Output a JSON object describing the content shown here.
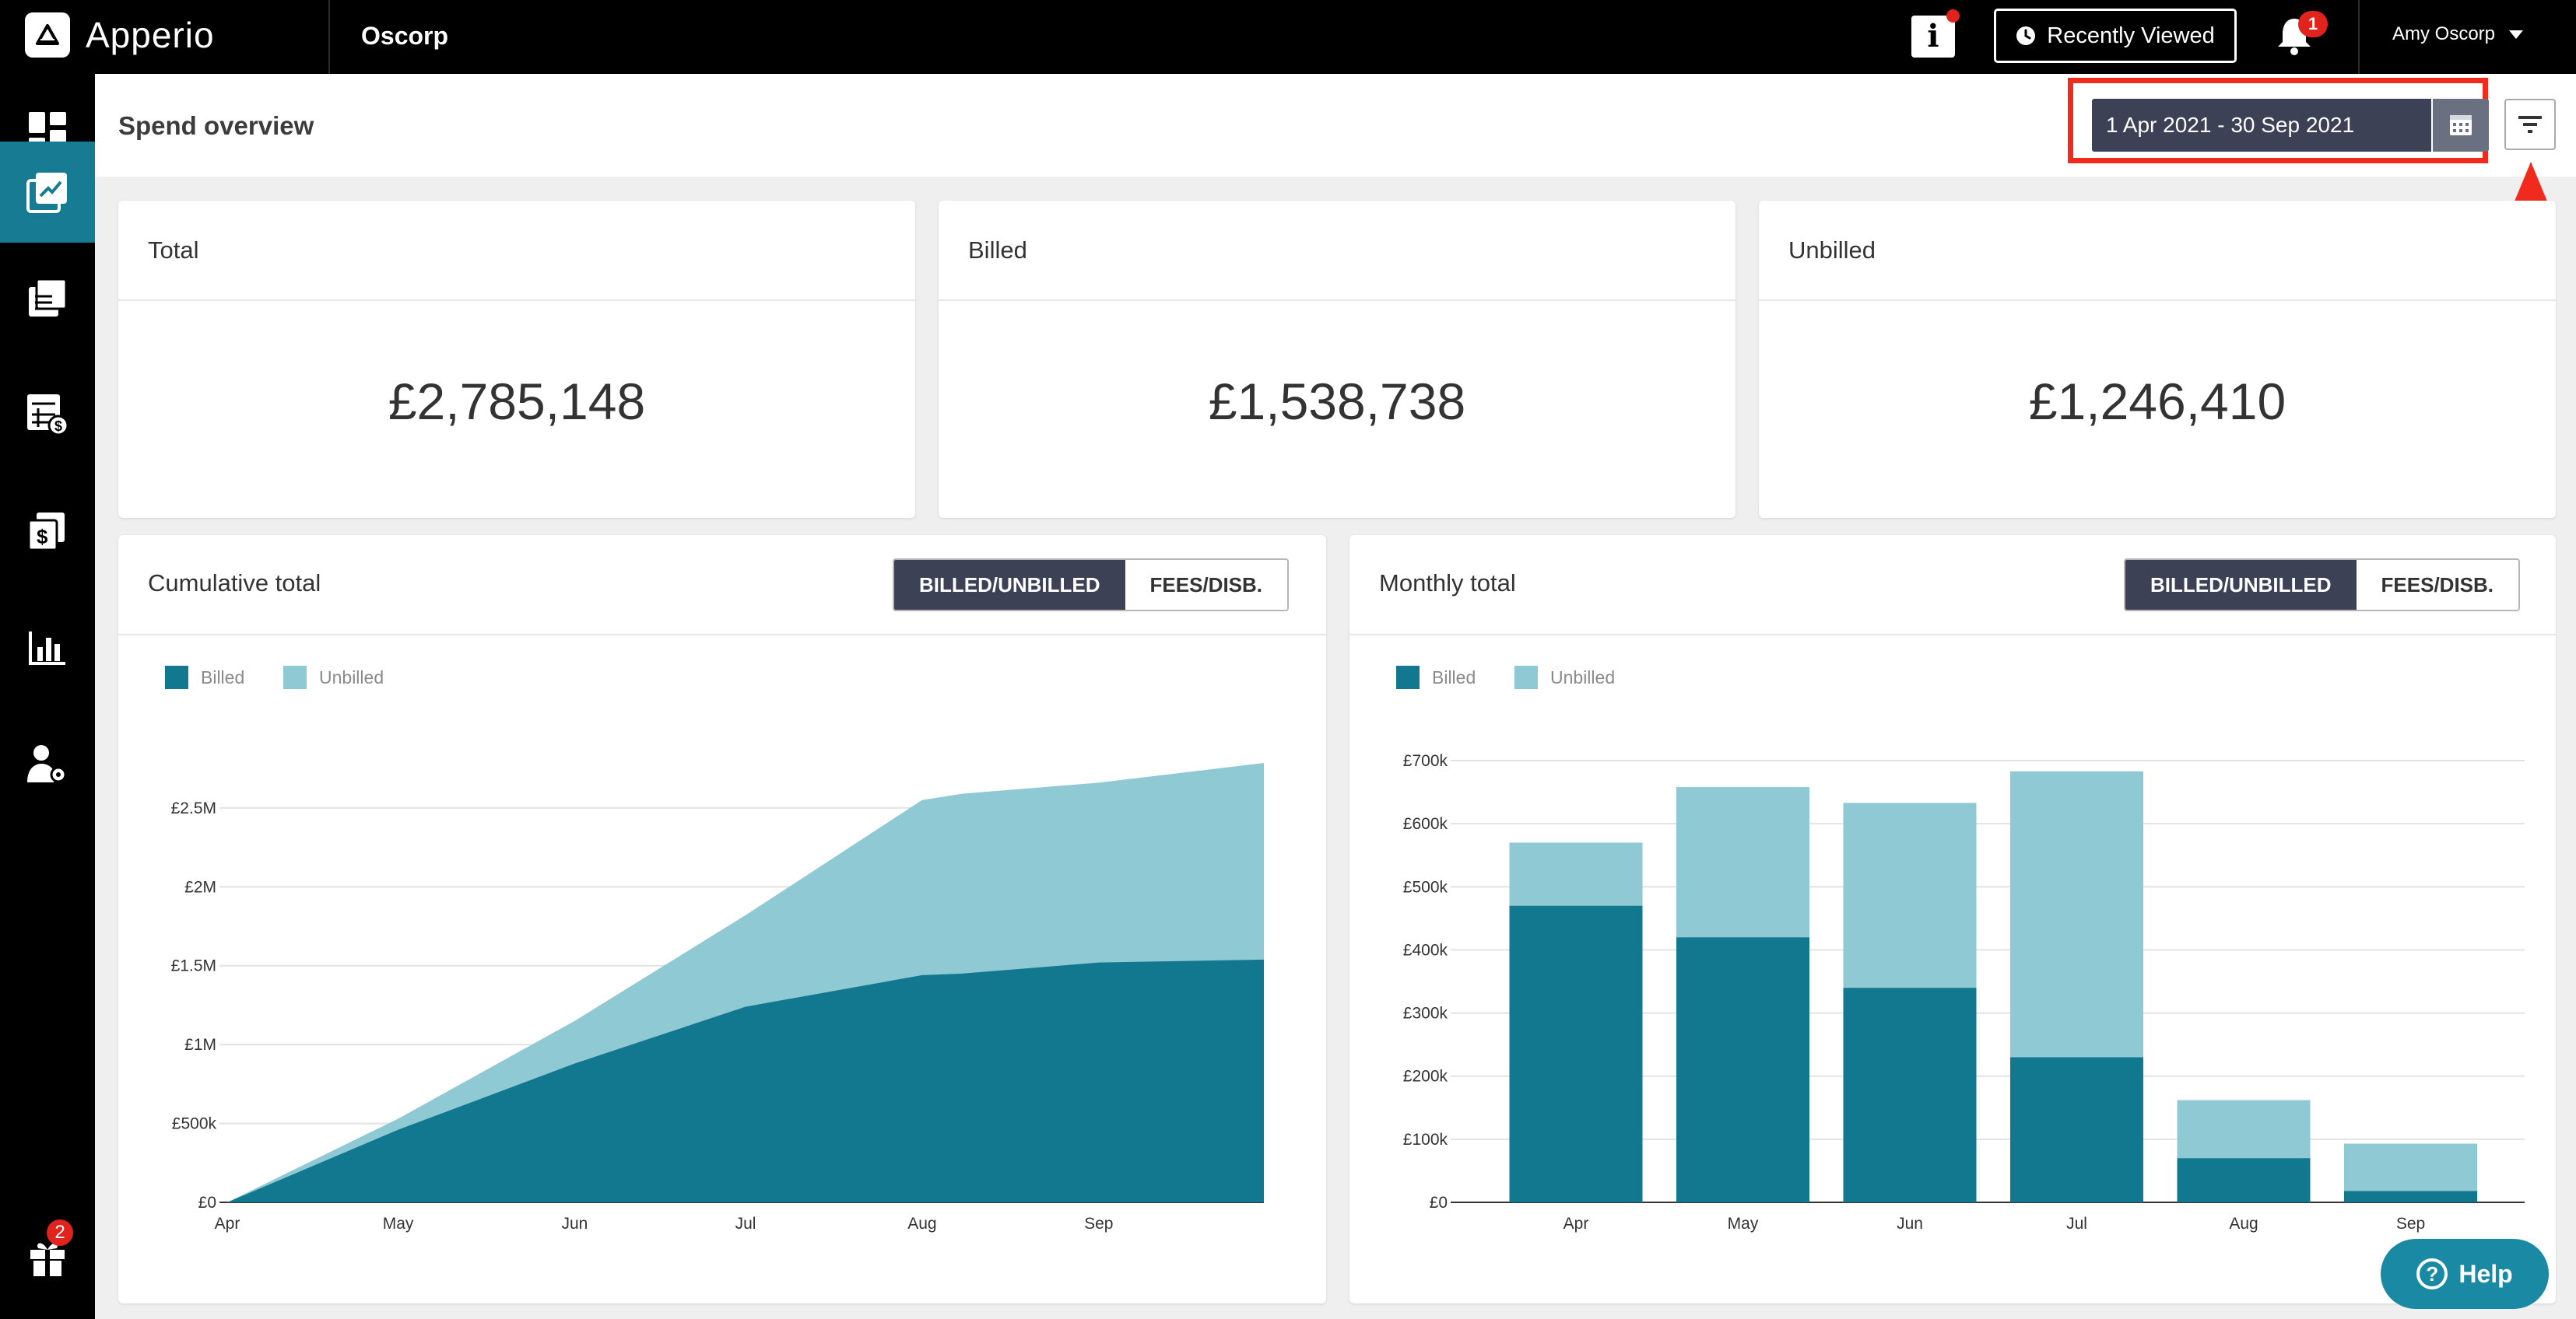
{
  "app": {
    "name": "Apperio",
    "client": "Oscorp"
  },
  "topbar": {
    "info_label": "i",
    "recently_viewed": "Recently Viewed",
    "notifications_count": "1",
    "user_name": "Amy Oscorp"
  },
  "sidebar": {
    "items": [
      {
        "icon": "dashboard-icon"
      },
      {
        "icon": "spend-trend-icon",
        "active": true
      },
      {
        "icon": "documents-icon"
      },
      {
        "icon": "budget-calculator-icon"
      },
      {
        "icon": "invoices-icon"
      },
      {
        "icon": "reports-bar-chart-icon"
      },
      {
        "icon": "user-settings-icon"
      }
    ],
    "gift_badge": "2"
  },
  "header": {
    "title": "Spend overview",
    "date_range": "1 Apr 2021 - 30 Sep 2021"
  },
  "stats": [
    {
      "label": "Total",
      "value": "£2,785,148"
    },
    {
      "label": "Billed",
      "value": "£1,538,738"
    },
    {
      "label": "Unbilled",
      "value": "£1,246,410"
    }
  ],
  "colors": {
    "billed": "#12788f",
    "unbilled": "#8ec9d4",
    "active_toggle": "#3c4156",
    "highlight": "#f02b1e"
  },
  "cumulative": {
    "title": "Cumulative total",
    "toggle": [
      "BILLED/UNBILLED",
      "FEES/DISB."
    ],
    "legend": [
      "Billed",
      "Unbilled"
    ],
    "y_ticks": [
      "£0",
      "£500k",
      "£1M",
      "£1.5M",
      "£2M",
      "£2.5M"
    ],
    "x_ticks": [
      "Apr",
      "May",
      "Jun",
      "Jul",
      "Aug",
      "Sep"
    ]
  },
  "monthly": {
    "title": "Monthly total",
    "toggle": [
      "BILLED/UNBILLED",
      "FEES/DISB."
    ],
    "legend": [
      "Billed",
      "Unbilled"
    ],
    "y_ticks": [
      "£0",
      "£100k",
      "£200k",
      "£300k",
      "£400k",
      "£500k",
      "£600k",
      "£700k"
    ],
    "x_ticks": [
      "Apr",
      "May",
      "Jun",
      "Jul",
      "Aug",
      "Sep"
    ]
  },
  "help_label": "Help",
  "chart_data": [
    {
      "type": "area",
      "title": "Cumulative total",
      "x": [
        "1 Apr",
        "1 May",
        "1 Jun",
        "1 Jul",
        "1 Aug",
        "8 Aug",
        "1 Sep",
        "30 Sep"
      ],
      "series": [
        {
          "name": "Billed",
          "values": [
            0,
            460000,
            880000,
            1240000,
            1440000,
            1450000,
            1520000,
            1538738
          ]
        },
        {
          "name": "Unbilled",
          "values": [
            0,
            70000,
            270000,
            580000,
            1110000,
            1140000,
            1140000,
            1246410
          ]
        }
      ],
      "stacked": true,
      "ylim": [
        0,
        2800000
      ],
      "legend": "top-left",
      "grid": true
    },
    {
      "type": "bar",
      "title": "Monthly total",
      "categories": [
        "Apr",
        "May",
        "Jun",
        "Jul",
        "Aug",
        "Sep"
      ],
      "series": [
        {
          "name": "Billed",
          "values": [
            470000,
            420000,
            340000,
            230000,
            70000,
            18000
          ]
        },
        {
          "name": "Unbilled",
          "values": [
            100000,
            238000,
            293000,
            453000,
            92000,
            75000
          ]
        }
      ],
      "stacked": true,
      "ylim": [
        0,
        700000
      ],
      "legend": "top-left",
      "grid": true
    }
  ]
}
